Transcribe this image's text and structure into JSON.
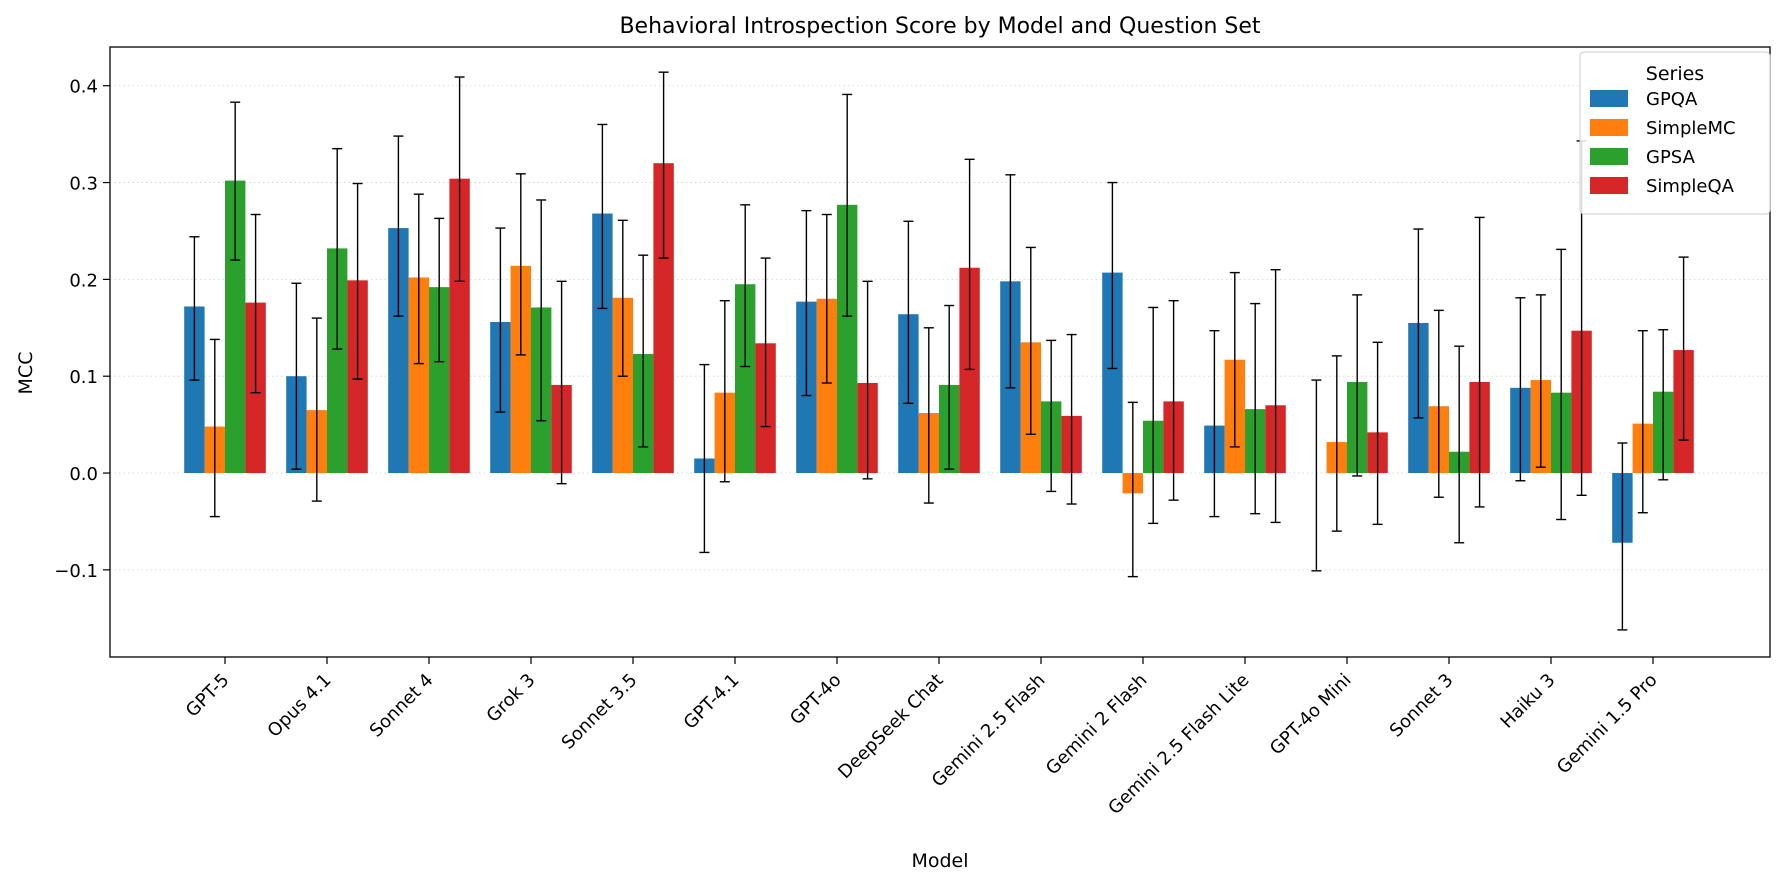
{
  "chart_data": {
    "type": "bar",
    "title": "Behavioral Introspection Score by Model and Question Set",
    "xlabel": "Model",
    "ylabel": "MCC",
    "ylim": [
      -0.19,
      0.44
    ],
    "yticks": [
      -0.1,
      0.0,
      0.1,
      0.2,
      0.3,
      0.4
    ],
    "ytick_labels": [
      "−0.1",
      "0.0",
      "0.1",
      "0.2",
      "0.3",
      "0.4"
    ],
    "grid": "y-dotted",
    "legend": {
      "title": "Series",
      "placement": "top-right"
    },
    "categories": [
      "GPT-5",
      "Opus 4.1",
      "Sonnet 4",
      "Grok 3",
      "Sonnet 3.5",
      "GPT-4.1",
      "GPT-4o",
      "DeepSeek Chat",
      "Gemini 2.5 Flash",
      "Gemini 2 Flash",
      "Gemini 2.5 Flash Lite",
      "GPT-4o Mini",
      "Sonnet 3",
      "Haiku 3",
      "Gemini 1.5 Pro"
    ],
    "series": [
      {
        "name": "GPQA",
        "color": "#1f77b4",
        "values": [
          0.172,
          0.1,
          0.253,
          0.156,
          0.268,
          0.015,
          0.177,
          0.164,
          0.198,
          0.207,
          0.049,
          0.0,
          0.155,
          0.088,
          -0.072
        ],
        "err_low": [
          0.096,
          0.004,
          0.162,
          0.063,
          0.17,
          -0.082,
          0.08,
          0.072,
          0.088,
          0.108,
          -0.045,
          -0.101,
          0.057,
          -0.008,
          -0.162
        ],
        "err_high": [
          0.244,
          0.196,
          0.348,
          0.253,
          0.36,
          0.112,
          0.271,
          0.26,
          0.308,
          0.3,
          0.147,
          0.096,
          0.252,
          0.181,
          0.031
        ]
      },
      {
        "name": "SimpleMC",
        "color": "#ff7f0e",
        "values": [
          0.048,
          0.065,
          0.202,
          0.214,
          0.181,
          0.083,
          0.18,
          0.062,
          0.135,
          -0.021,
          0.117,
          0.032,
          0.069,
          0.096,
          0.051
        ],
        "err_low": [
          -0.045,
          -0.029,
          0.113,
          0.122,
          0.1,
          -0.009,
          0.093,
          -0.031,
          0.04,
          -0.107,
          0.027,
          -0.06,
          -0.025,
          0.006,
          -0.041
        ],
        "err_high": [
          0.138,
          0.16,
          0.288,
          0.309,
          0.261,
          0.178,
          0.267,
          0.15,
          0.233,
          0.073,
          0.207,
          0.121,
          0.168,
          0.184,
          0.147
        ]
      },
      {
        "name": "GPSA",
        "color": "#2ca02c",
        "values": [
          0.302,
          0.232,
          0.192,
          0.171,
          0.123,
          0.195,
          0.277,
          0.091,
          0.074,
          0.054,
          0.066,
          0.094,
          0.022,
          0.083,
          0.084
        ],
        "err_low": [
          0.22,
          0.128,
          0.115,
          0.054,
          0.027,
          0.11,
          0.162,
          0.004,
          -0.019,
          -0.052,
          -0.042,
          -0.003,
          -0.072,
          -0.048,
          -0.007
        ],
        "err_high": [
          0.383,
          0.335,
          0.263,
          0.282,
          0.225,
          0.277,
          0.391,
          0.173,
          0.137,
          0.171,
          0.175,
          0.184,
          0.131,
          0.231,
          0.148
        ]
      },
      {
        "name": "SimpleQA",
        "color": "#d62728",
        "values": [
          0.176,
          0.199,
          0.304,
          0.091,
          0.32,
          0.134,
          0.093,
          0.212,
          0.059,
          0.074,
          0.07,
          0.042,
          0.094,
          0.147,
          0.127
        ],
        "err_low": [
          0.083,
          0.097,
          0.198,
          -0.011,
          0.222,
          0.048,
          -0.006,
          0.107,
          -0.032,
          -0.028,
          -0.051,
          -0.053,
          -0.035,
          -0.023,
          0.034
        ],
        "err_high": [
          0.267,
          0.299,
          0.409,
          0.198,
          0.414,
          0.222,
          0.198,
          0.324,
          0.143,
          0.178,
          0.21,
          0.135,
          0.264,
          0.343,
          0.223
        ]
      }
    ]
  }
}
